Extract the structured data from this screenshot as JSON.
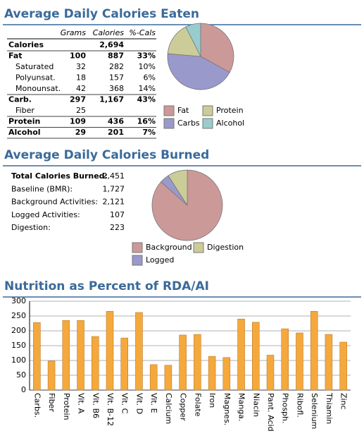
{
  "sections": [
    {
      "title": "Average Daily Calories Eaten"
    },
    {
      "title": "Average Daily Calories Burned"
    }
  ],
  "table": {
    "header": [
      "Grams",
      "Calories",
      "%-Cals"
    ],
    "rows": [
      [
        "Calories",
        null,
        "2,694",
        null
      ],
      [
        "Fat",
        "100",
        "887",
        "33%"
      ],
      [
        "Saturated",
        "32",
        "282",
        "10%"
      ],
      [
        "Polyunsat.",
        "18",
        "157",
        "6%"
      ],
      [
        "Monounsat.",
        "42",
        "368",
        "14%"
      ],
      [
        "Carb.",
        "297",
        "1,167",
        "43%"
      ],
      [
        "Fiber",
        "25",
        null,
        null
      ],
      [
        "Protein",
        "109",
        "436",
        "16%"
      ],
      [
        "Alcohol",
        "29",
        "201",
        "7%"
      ]
    ]
  },
  "stats": [
    [
      "Total Calories Burned:",
      "2,451"
    ],
    [
      "Baseline (BMR):",
      "1,727"
    ],
    [
      "Background Activities:",
      "2,121"
    ],
    [
      "Logged Activities:",
      "107"
    ],
    [
      "Digestion:",
      "223"
    ]
  ],
  "chart_data": [
    {
      "type": "pie",
      "categories": [
        "Fat",
        "Carbs",
        "Protein",
        "Alcohol"
      ],
      "values": [
        887,
        1167,
        436,
        201
      ],
      "colors": [
        "#cc9999",
        "#9999cc",
        "#cccc99",
        "#99cccc"
      ]
    },
    {
      "type": "pie",
      "categories": [
        "Background",
        "Logged",
        "Digestion"
      ],
      "values": [
        2121,
        107,
        223
      ],
      "colors": [
        "#cc9999",
        "#9999cc",
        "#cccc99"
      ]
    },
    {
      "type": "bar",
      "title": "Nutrition as Percent of RDA/AI",
      "categories": [
        "Carbs.",
        "Fiber",
        "Protein",
        "Vit. A",
        "Vit. B6",
        "Vit. B-12",
        "Vit. C",
        "Vit. D",
        "Vit. E",
        "Calcium",
        "Copper",
        "Folate",
        "Iron",
        "Magnes.",
        "Manga.",
        "Niacin",
        "Pant. Acid",
        "Phosph.",
        "Ribofl.",
        "Selenium",
        "Thiamin",
        "Zinc"
      ],
      "values": [
        228,
        98,
        235,
        235,
        181,
        266,
        176,
        262,
        86,
        84,
        186,
        188,
        114,
        110,
        240,
        229,
        118,
        207,
        193,
        266,
        188,
        162
      ],
      "color": "#f5a83c",
      "ylim": [
        0,
        300
      ],
      "yticks": [
        0,
        50,
        100,
        150,
        200,
        250,
        300
      ],
      "grid": true
    }
  ]
}
